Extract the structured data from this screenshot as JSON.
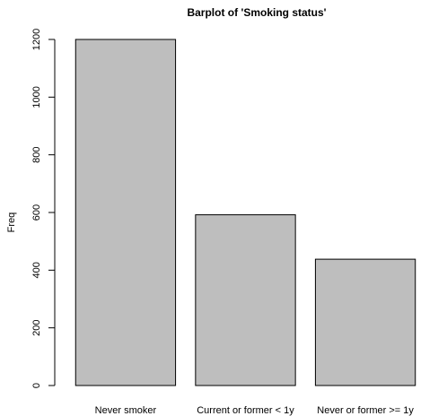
{
  "chart_data": {
    "type": "bar",
    "title": "Barplot of 'Smoking status'",
    "xlabel": "",
    "ylabel": "Freq",
    "categories": [
      "Never smoker",
      "Current or former < 1y",
      "Never or former >= 1y"
    ],
    "values": [
      1200,
      592,
      438
    ],
    "ylim": [
      0,
      1200
    ],
    "yticks": [
      0,
      200,
      400,
      600,
      800,
      1000,
      1200
    ],
    "bar_color": "#bebebe",
    "grid": false,
    "legend": "none"
  }
}
